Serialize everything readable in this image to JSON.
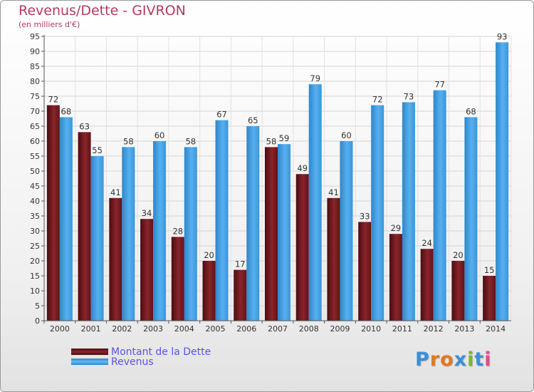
{
  "title": "Revenus/Dette - GIVRON",
  "subtitle": "(en milliers d'€)",
  "legend": {
    "debt_label": "Montant de la Dette",
    "revenue_label": "Revenus"
  },
  "logo": {
    "text": "Proxiti"
  },
  "colors": {
    "debt": "#7b1d22",
    "debt_dark": "#4a0d10",
    "revenue": "#4aa3e6",
    "revenue_dark": "#2f86c9",
    "title": "#b03a5c",
    "legend_text": "#5a52e0"
  },
  "chart_data": {
    "type": "bar",
    "title": "Revenus/Dette - GIVRON",
    "ylabel": "(en milliers d'€)",
    "xlabel": "",
    "categories": [
      "2000",
      "2001",
      "2002",
      "2003",
      "2004",
      "2005",
      "2006",
      "2007",
      "2008",
      "2009",
      "2010",
      "2011",
      "2012",
      "2013",
      "2014"
    ],
    "series": [
      {
        "name": "Montant de la Dette",
        "values": [
          72,
          63,
          41,
          34,
          28,
          20,
          17,
          58,
          49,
          41,
          33,
          29,
          24,
          20,
          15
        ]
      },
      {
        "name": "Revenus",
        "values": [
          68,
          55,
          58,
          60,
          58,
          67,
          65,
          59,
          79,
          60,
          72,
          73,
          77,
          68,
          93
        ]
      }
    ],
    "ylim": [
      0,
      95
    ],
    "ytick_step": 5,
    "grid": true,
    "legend_position": "bottom-left"
  }
}
